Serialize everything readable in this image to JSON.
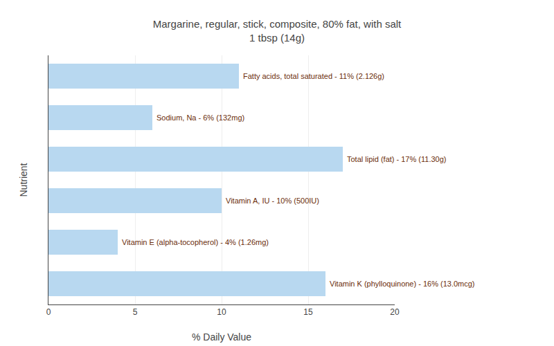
{
  "chart_data": {
    "type": "bar",
    "orientation": "horizontal",
    "title": "Margarine, regular, stick, composite, 80% fat, with salt",
    "subtitle": "1 tbsp (14g)",
    "x_label": "% Daily Value",
    "y_label": "Nutrient",
    "categories": [
      "Fatty acids, total saturated - 11% (2.126g)",
      "Sodium, Na - 6% (132mg)",
      "Total lipid (fat) - 17% (11.30g)",
      "Vitamin A, IU - 10% (500IU)",
      "Vitamin E (alpha-tocopherol) - 4% (1.26mg)",
      "Vitamin K (phylloquinone) - 16% (13.0mcg)"
    ],
    "values": [
      11,
      6,
      17,
      10,
      4,
      16
    ],
    "color": "#b8d8f0",
    "xlim": [
      0,
      20
    ],
    "xticks": [
      0,
      5,
      10,
      15,
      20
    ],
    "grid": true,
    "tick_labels": "x"
  }
}
